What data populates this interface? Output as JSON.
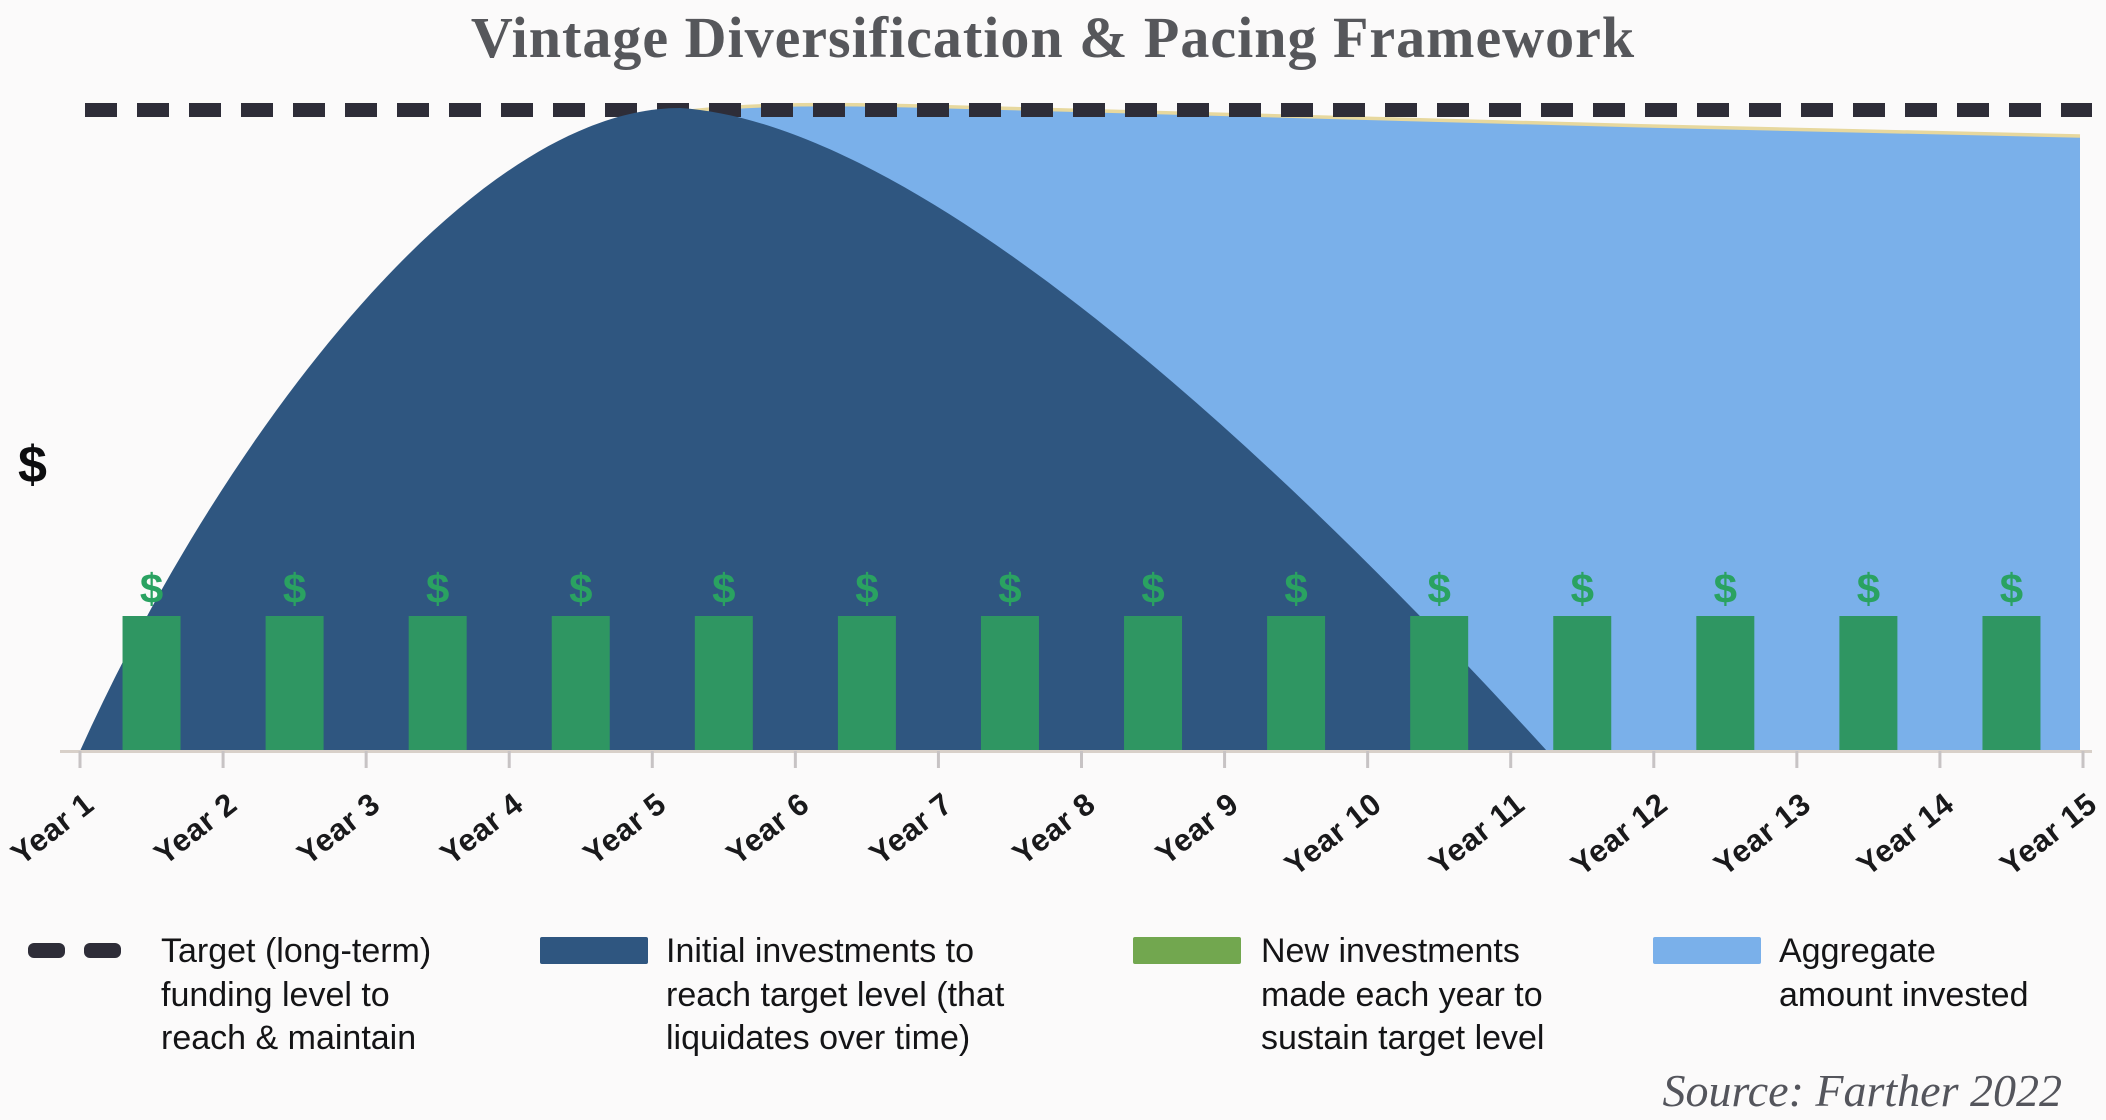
{
  "chart": {
    "title": "Vintage Diversification & Pacing Framework",
    "ylabel": "$",
    "source": "Source: Farther 2022"
  },
  "legend": {
    "items": [
      {
        "id": "target-line",
        "label": "Target (long-term)\nfunding level to\nreach & maintain",
        "swatch": "dashed-line",
        "color": "#2e2d38"
      },
      {
        "id": "initial-investments",
        "label": "Initial investments to\nreach target level (that\nliquidates over time)",
        "swatch": "rect",
        "color": "#2f5680"
      },
      {
        "id": "new-investments",
        "label": "New investments\nmade each year to\nsustain target level",
        "swatch": "rect",
        "color": "#72a74f"
      },
      {
        "id": "aggregate-invested",
        "label": "Aggregate\namount invested",
        "swatch": "rect",
        "color": "#7ab0ea"
      }
    ]
  },
  "chart_data": {
    "type": "area",
    "title": "Vintage Diversification & Pacing Framework",
    "xlabel": "",
    "ylabel": "$",
    "bar_symbol": "$",
    "categories": [
      "Year 1",
      "Year 2",
      "Year 3",
      "Year 4",
      "Year 5",
      "Year 6",
      "Year 7",
      "Year 8",
      "Year 9",
      "Year 10",
      "Year 11",
      "Year 12",
      "Year 13",
      "Year 14",
      "Year 15"
    ],
    "value_scale": "fraction of target funding level (chart shows no numeric y-axis, only $)",
    "target_level": 1.0,
    "series": [
      {
        "name": "Target (long-term) funding level to reach & maintain",
        "type": "dashed-line",
        "values": [
          1,
          1,
          1,
          1,
          1,
          1,
          1,
          1,
          1,
          1,
          1,
          1,
          1,
          1,
          1
        ]
      },
      {
        "name": "Initial investments to reach target level (that liquidates over time)",
        "type": "area",
        "values": [
          0,
          0.4,
          0.67,
          0.87,
          0.98,
          0.95,
          0.82,
          0.67,
          0.49,
          0.27,
          0.05,
          0,
          0,
          0,
          0
        ]
      },
      {
        "name": "New investments made each year to sustain target level",
        "type": "bar",
        "note": "14 equal bars, one between each pair of year ticks",
        "values": [
          0.21,
          0.21,
          0.21,
          0.21,
          0.21,
          0.21,
          0.21,
          0.21,
          0.21,
          0.21,
          0.21,
          0.21,
          0.21,
          0.21
        ]
      },
      {
        "name": "Aggregate amount invested",
        "type": "area",
        "values": [
          0,
          0.4,
          0.67,
          0.87,
          1.0,
          1.0,
          0.99,
          0.99,
          0.98,
          0.98,
          0.97,
          0.97,
          0.96,
          0.96,
          0.96
        ]
      }
    ],
    "colors": {
      "initial_area": "#2f5680",
      "aggregate_area": "#7ab0ea",
      "aggregate_top_edge": "#e7d89e",
      "bars": "#2f9662",
      "bar_dollar": "#2aa261",
      "target_dash": "#2e2d38",
      "legend_green": "#72a74f"
    },
    "legend_position": "bottom",
    "grid": false
  }
}
